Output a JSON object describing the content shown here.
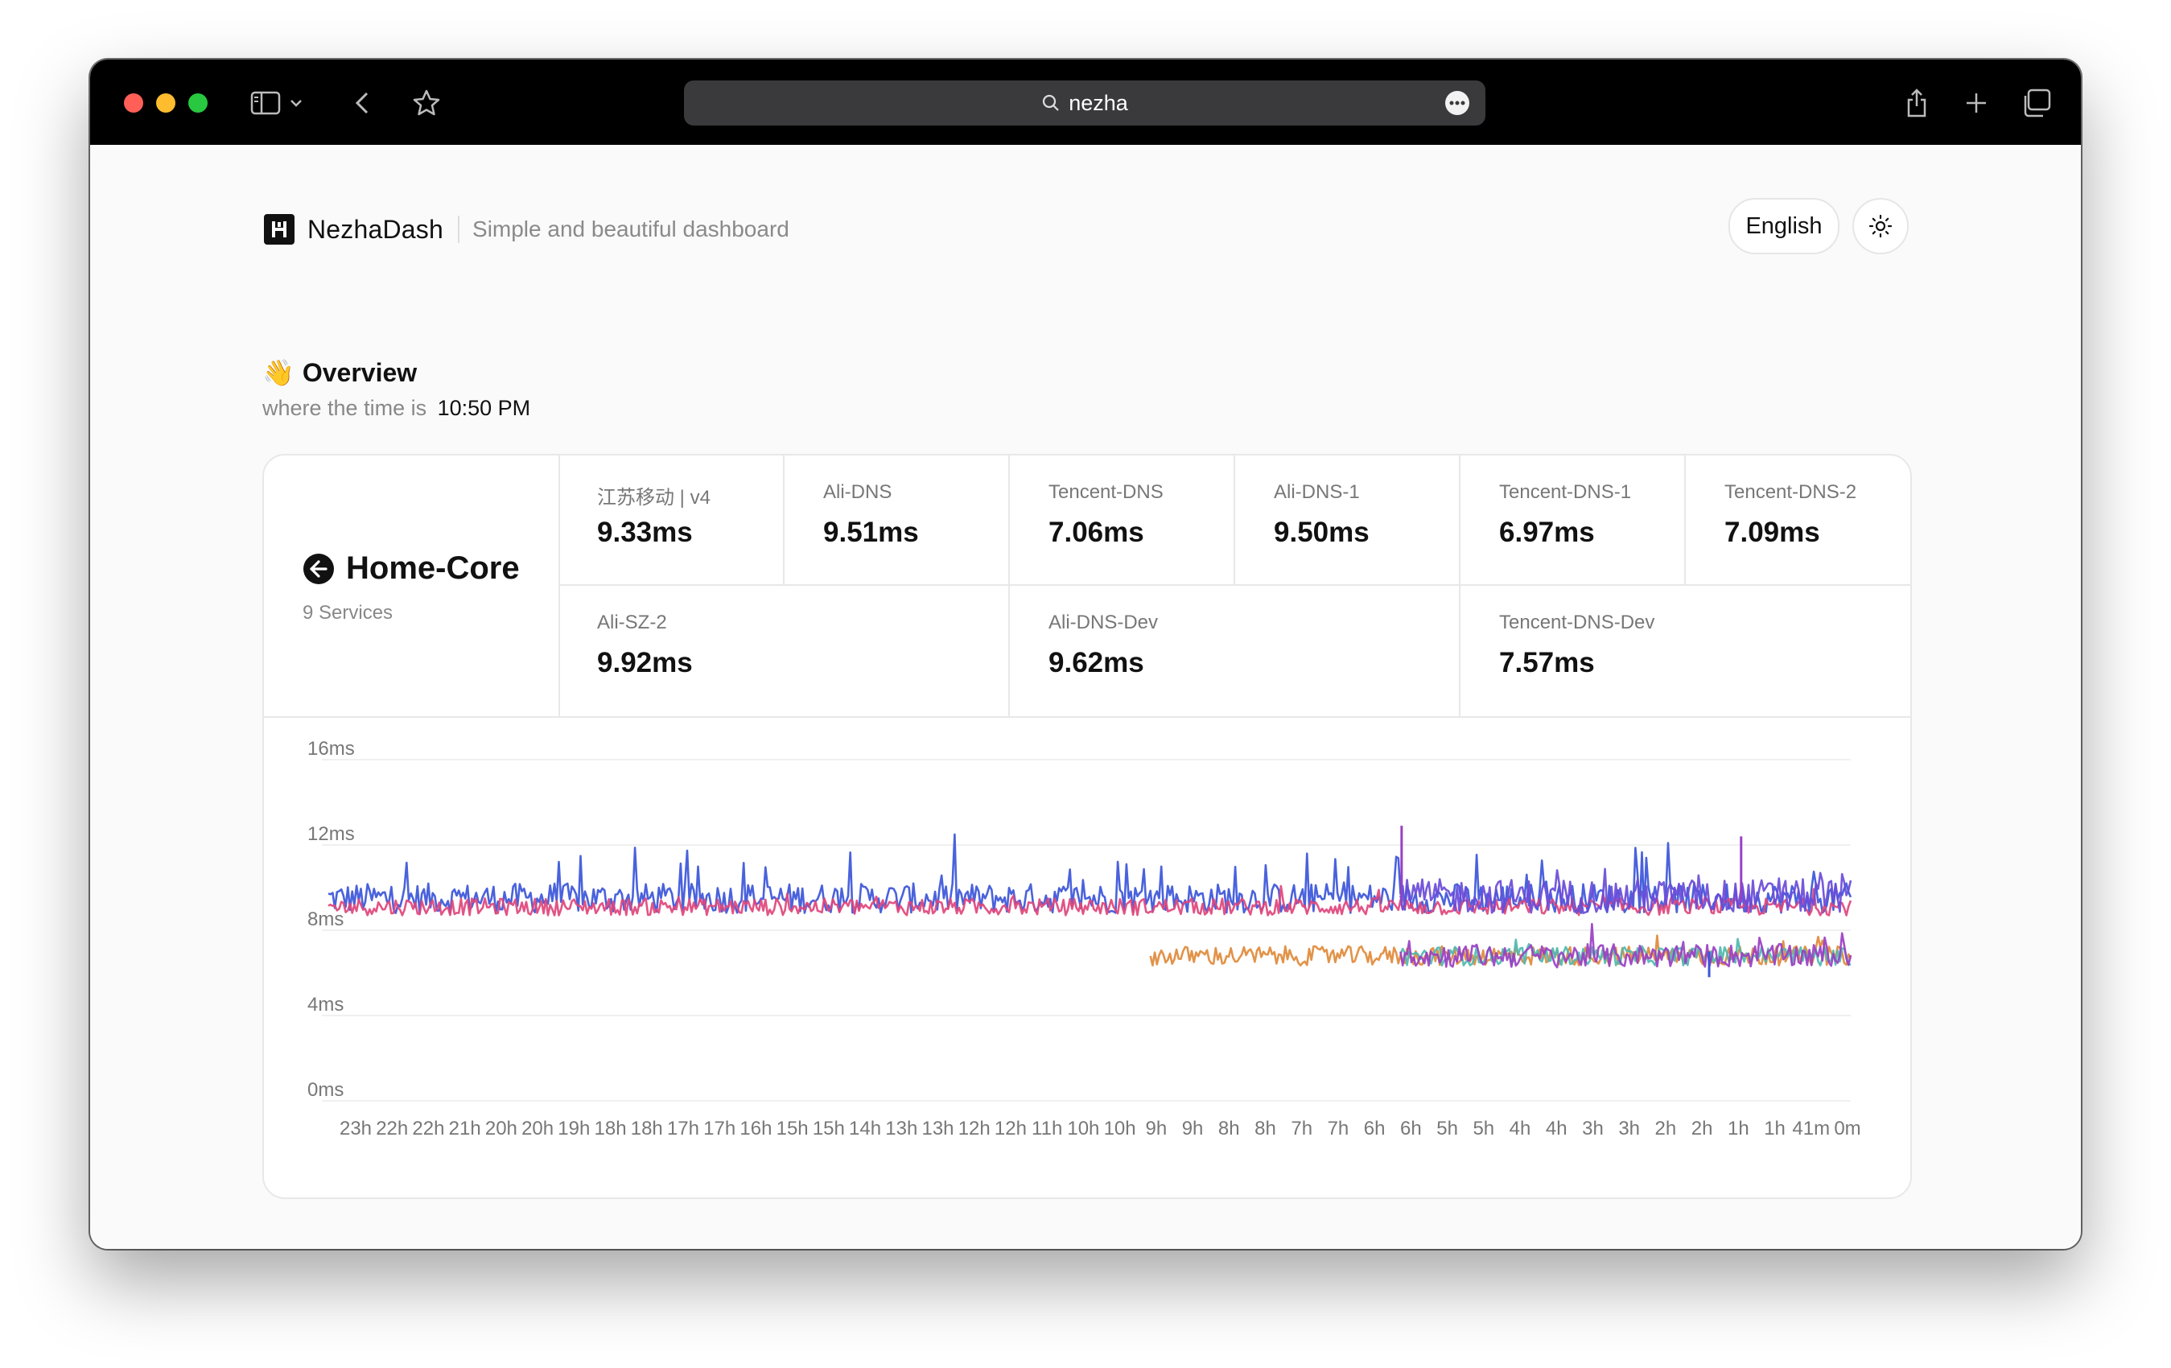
{
  "browser": {
    "url_text": "nezha",
    "buttons": [
      "sidebar",
      "sidebar-menu",
      "back",
      "bookmark",
      "share",
      "new-tab",
      "tabs-overview"
    ]
  },
  "header": {
    "brand_name": "NezhaDash",
    "tagline": "Simple and beautiful dashboard",
    "language": "English",
    "theme_icon": "sun-icon"
  },
  "overview": {
    "emoji": "👋",
    "title": "Overview",
    "time_prefix": "where the time is",
    "time": "10:50 PM"
  },
  "group": {
    "name": "Home-Core",
    "services_count": "9 Services",
    "icon": "arrow-left-circle-icon"
  },
  "services": [
    {
      "name": "江苏移动 | v4",
      "latency": "9.33ms"
    },
    {
      "name": "Ali-DNS",
      "latency": "9.51ms"
    },
    {
      "name": "Tencent-DNS",
      "latency": "7.06ms"
    },
    {
      "name": "Ali-DNS-1",
      "latency": "9.50ms"
    },
    {
      "name": "Tencent-DNS-1",
      "latency": "6.97ms"
    },
    {
      "name": "Tencent-DNS-2",
      "latency": "7.09ms"
    },
    {
      "name": "Ali-SZ-2",
      "latency": "9.92ms"
    },
    {
      "name": "Ali-DNS-Dev",
      "latency": "9.62ms"
    },
    {
      "name": "Tencent-DNS-Dev",
      "latency": "7.57ms"
    }
  ],
  "chart_data": {
    "type": "line",
    "y_ticks": [
      "16ms",
      "12ms",
      "8ms",
      "4ms",
      "0ms"
    ],
    "ylim": [
      0,
      16
    ],
    "x_ticks": [
      "23h",
      "22h",
      "22h",
      "21h",
      "20h",
      "20h",
      "19h",
      "18h",
      "18h",
      "17h",
      "17h",
      "16h",
      "15h",
      "15h",
      "14h",
      "13h",
      "13h",
      "12h",
      "12h",
      "11h",
      "10h",
      "10h",
      "9h",
      "9h",
      "8h",
      "8h",
      "7h",
      "7h",
      "6h",
      "6h",
      "5h",
      "5h",
      "4h",
      "4h",
      "3h",
      "3h",
      "2h",
      "2h",
      "1h",
      "1h",
      "41m",
      "0m"
    ],
    "grid": true,
    "series": [
      {
        "color": "#3b55d9",
        "start": 0.0,
        "base": 9.5,
        "noise": 0.7,
        "spike_chance": 0.07,
        "spike": 2.5
      },
      {
        "color": "#e0457b",
        "start": 0.0,
        "base": 9.1,
        "noise": 0.4,
        "spike_chance": 0.02,
        "spike": 0.8
      },
      {
        "color": "#6a4bd8",
        "start": 0.705,
        "base": 9.6,
        "noise": 0.8,
        "spike_chance": 0.08,
        "spike": 2.0
      },
      {
        "color": "#e08a3a",
        "start": 0.54,
        "base": 6.8,
        "noise": 0.45,
        "spike_chance": 0.03,
        "spike": 0.9
      },
      {
        "color": "#4fb8b0",
        "start": 0.705,
        "base": 6.8,
        "noise": 0.45,
        "spike_chance": 0.03,
        "spike": 0.9
      },
      {
        "color": "#9a3fc4",
        "start": 0.705,
        "base": 6.8,
        "noise": 0.55,
        "spike_chance": 0.04,
        "spike": 1.2
      }
    ],
    "highlights": [
      {
        "at": 0.705,
        "value": 12.9,
        "color": "#9a3fc4"
      },
      {
        "at": 0.928,
        "value": 12.4,
        "color": "#9a3fc4"
      },
      {
        "at": 0.907,
        "value": 5.8,
        "color": "#3b55d9"
      }
    ]
  }
}
